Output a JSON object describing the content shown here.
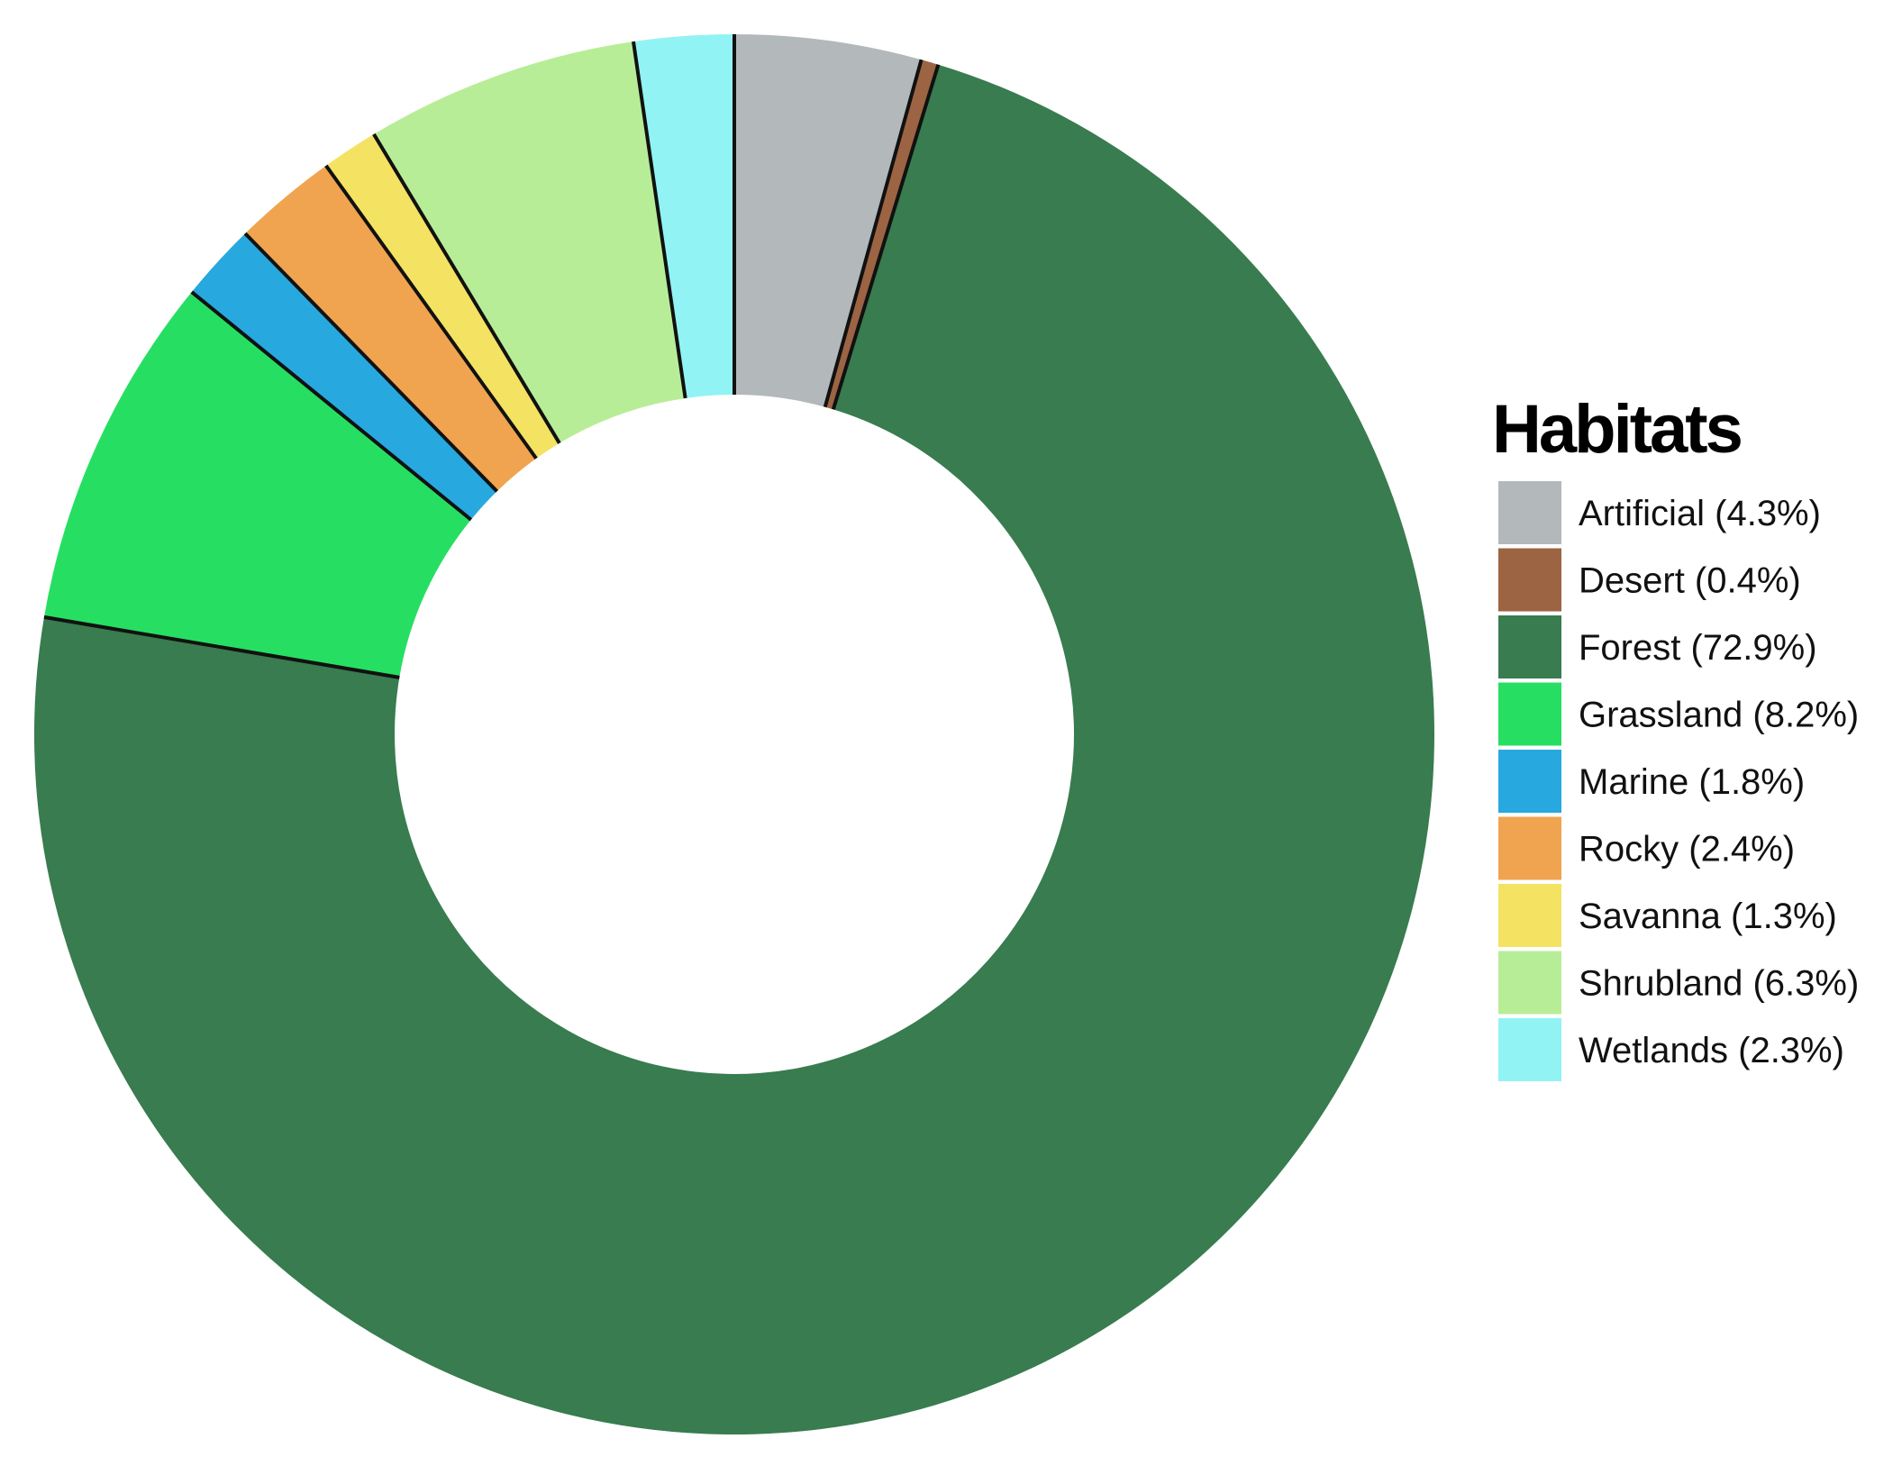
{
  "chart_data": {
    "type": "pie",
    "variant": "donut",
    "categories": [
      "Artificial",
      "Desert",
      "Forest",
      "Grassland",
      "Marine",
      "Rocky",
      "Savanna",
      "Shrubland",
      "Wetlands"
    ],
    "values": [
      4.3,
      0.4,
      72.9,
      8.2,
      1.8,
      2.4,
      1.3,
      6.3,
      2.3
    ],
    "unit": "%",
    "colors": [
      "#b3b9bb",
      "#9c6443",
      "#387c4f",
      "#26df62",
      "#27a9df",
      "#f0a44f",
      "#f4e262",
      "#b8ed98",
      "#92f3f4"
    ],
    "start_angle": "12 o'clock",
    "direction": "clockwise",
    "legend": {
      "title": "Habitats",
      "placement": "right",
      "labels": [
        "Artificial (4.3%)",
        "Desert (0.4%)",
        "Forest (72.9%)",
        "Grassland (8.2%)",
        "Marine (1.8%)",
        "Rocky (2.4%)",
        "Savanna (1.3%)",
        "Shrubland (6.3%)",
        "Wetlands (2.3%)"
      ]
    }
  }
}
